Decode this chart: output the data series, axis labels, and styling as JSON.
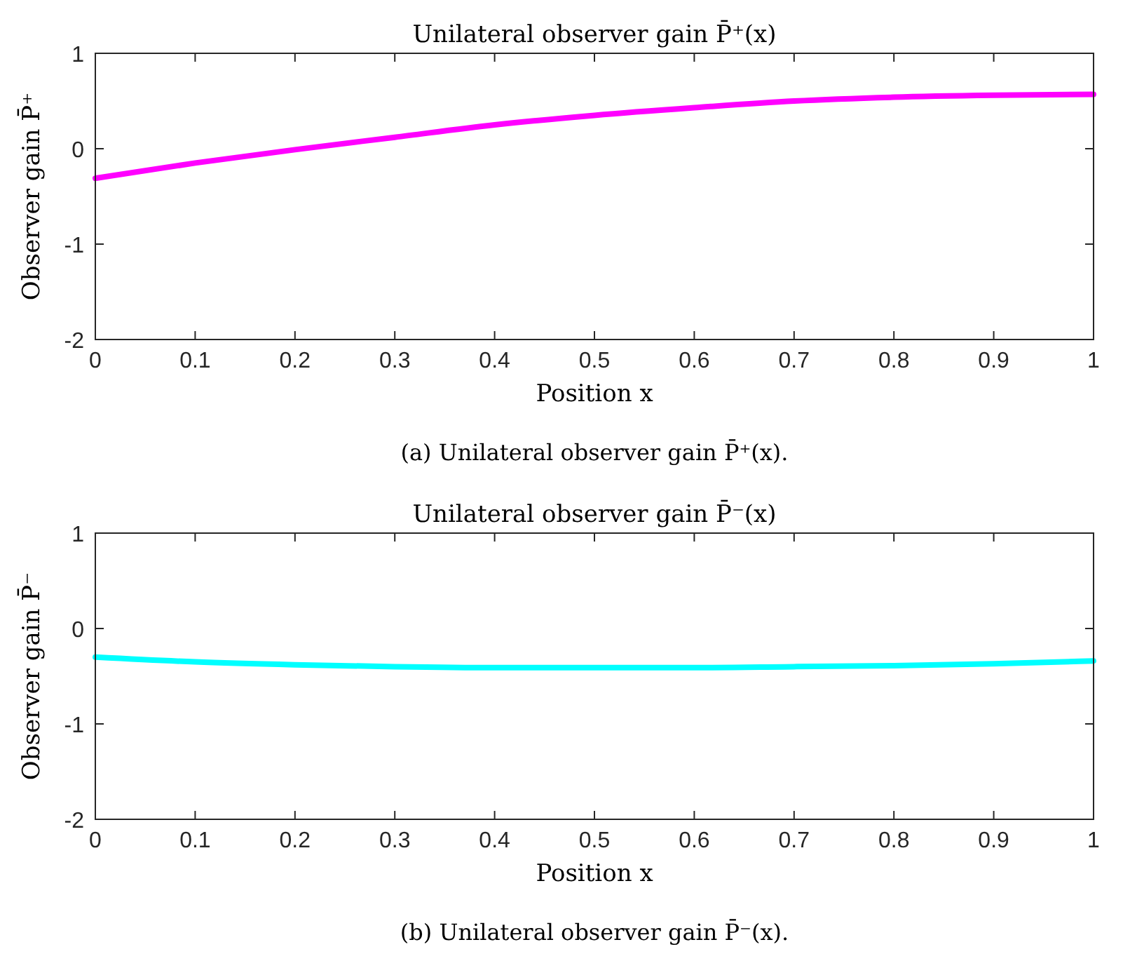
{
  "chart_data": [
    {
      "type": "line",
      "title": "Unilateral observer gain P̄⁺(x)",
      "xlabel": "Position x",
      "ylabel": "Observer gain P̄⁺",
      "annotations": [
        "(a) Unilateral observer gain P̄⁺(x)."
      ],
      "x": [
        0,
        0.1,
        0.2,
        0.3,
        0.4,
        0.5,
        0.6,
        0.7,
        0.8,
        0.9,
        1
      ],
      "series": [
        {
          "color": "#ff00ff",
          "values": [
            -0.31,
            -0.15,
            -0.01,
            0.12,
            0.25,
            0.35,
            0.43,
            0.5,
            0.54,
            0.56,
            0.57
          ]
        }
      ],
      "xlim": [
        0,
        1
      ],
      "xticks": [
        0,
        0.1,
        0.2,
        0.3,
        0.4,
        0.5,
        0.6,
        0.7,
        0.8,
        0.9,
        1
      ],
      "ylim": [
        -2,
        1
      ],
      "yticks": [
        -2,
        -1,
        0,
        1
      ]
    },
    {
      "type": "line",
      "title": "Unilateral observer gain P̄⁻(x)",
      "xlabel": "Position x",
      "ylabel": "Observer gain P̄⁻",
      "annotations": [
        "(b) Unilateral observer gain P̄⁻(x)."
      ],
      "x": [
        0,
        0.1,
        0.2,
        0.3,
        0.4,
        0.5,
        0.6,
        0.7,
        0.8,
        0.9,
        1
      ],
      "series": [
        {
          "color": "#00ffff",
          "values": [
            -0.3,
            -0.35,
            -0.38,
            -0.4,
            -0.41,
            -0.41,
            -0.41,
            -0.4,
            -0.39,
            -0.37,
            -0.34
          ]
        }
      ],
      "xlim": [
        0,
        1
      ],
      "xticks": [
        0,
        0.1,
        0.2,
        0.3,
        0.4,
        0.5,
        0.6,
        0.7,
        0.8,
        0.9,
        1
      ],
      "ylim": [
        -2,
        1
      ],
      "yticks": [
        -2,
        -1,
        0,
        1
      ]
    }
  ]
}
